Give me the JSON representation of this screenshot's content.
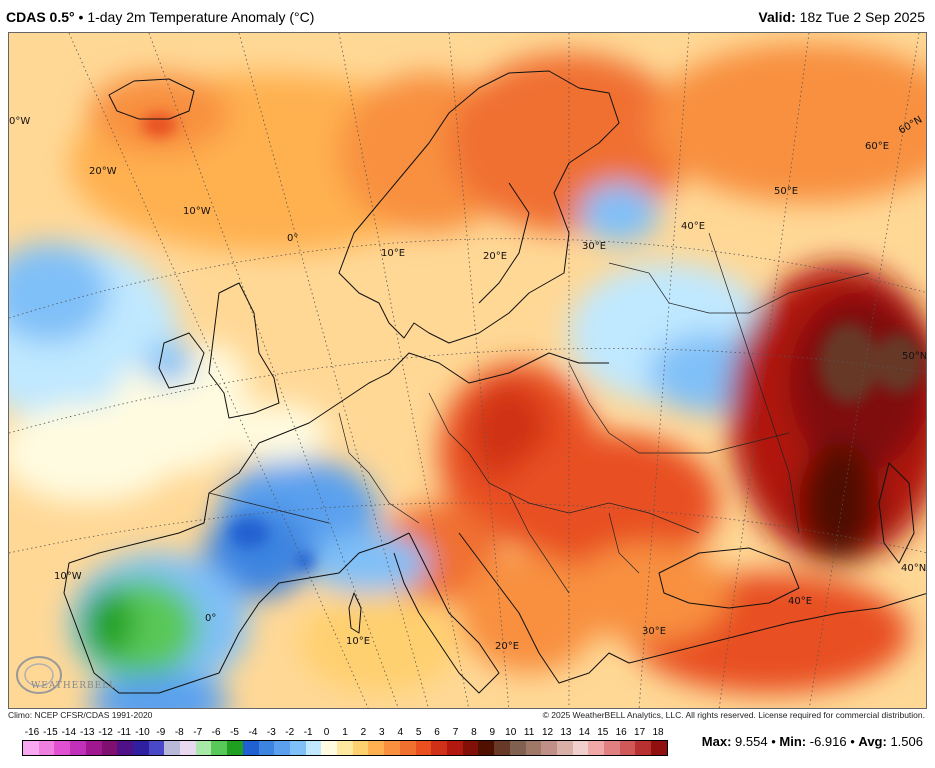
{
  "header": {
    "model": "CDAS 0.5°",
    "separator": "•",
    "variable": "1-day 2m Temperature Anomaly (°C)",
    "valid_label": "Valid:",
    "valid_time": "18z Tue 2 Sep 2025"
  },
  "map": {
    "graticule_labels": [
      {
        "text": "0°W"
      },
      {
        "text": "20°W"
      },
      {
        "text": "10°W"
      },
      {
        "text": "0°"
      },
      {
        "text": "10°E"
      },
      {
        "text": "20°E"
      },
      {
        "text": "30°E"
      },
      {
        "text": "40°E"
      },
      {
        "text": "50°E"
      },
      {
        "text": "60°E"
      },
      {
        "text": "60°N"
      },
      {
        "text": "50°N"
      },
      {
        "text": "40°N"
      },
      {
        "text": "10°W"
      },
      {
        "text": "0°"
      },
      {
        "text": "10°E"
      },
      {
        "text": "20°E"
      },
      {
        "text": "30°E"
      },
      {
        "text": "40°E"
      }
    ],
    "logo_text": "WEATHERBELL",
    "anomaly_scale_min": -16,
    "anomaly_scale_max": 18
  },
  "footer": {
    "climo": "Climo: NCEP CFSR/CDAS 1991-2020",
    "copyright": "© 2025 WeatherBELL Analytics, LLC. All rights reserved. License required for commercial distribution."
  },
  "colorbar": {
    "ticks": [
      "-16",
      "-15",
      "-14",
      "-13",
      "-12",
      "-11",
      "-10",
      "-9",
      "-8",
      "-7",
      "-6",
      "-5",
      "-4",
      "-3",
      "-2",
      "-1",
      "0",
      "1",
      "2",
      "3",
      "4",
      "5",
      "6",
      "7",
      "8",
      "9",
      "10",
      "11",
      "12",
      "13",
      "14",
      "15",
      "16",
      "17",
      "18"
    ],
    "colors": [
      "#f8a8f0",
      "#f080e0",
      "#e050d0",
      "#c030b8",
      "#a01890",
      "#801070",
      "#501088",
      "#3020a0",
      "#4848c8",
      "#b8b8d8",
      "#e8d8f0",
      "#a8e8a8",
      "#58c858",
      "#20a020",
      "#2060d0",
      "#3c84e0",
      "#5aa0ee",
      "#80c0f8",
      "#c0e8ff",
      "#fffbe0",
      "#ffe8a0",
      "#ffd070",
      "#ffb050",
      "#f89040",
      "#f07030",
      "#e85020",
      "#d03018",
      "#b01810",
      "#801008",
      "#501000",
      "#683828",
      "#806050",
      "#a07868",
      "#c09088",
      "#d8b0a8",
      "#f0d0cc",
      "#f0a8a8",
      "#e08080",
      "#d05858",
      "#b83030",
      "#901010"
    ]
  },
  "stats": {
    "max_label": "Max:",
    "max_value": "9.554",
    "min_label": "Min:",
    "min_value": "-6.916",
    "avg_label": "Avg:",
    "avg_value": "1.506",
    "sep": "•"
  }
}
